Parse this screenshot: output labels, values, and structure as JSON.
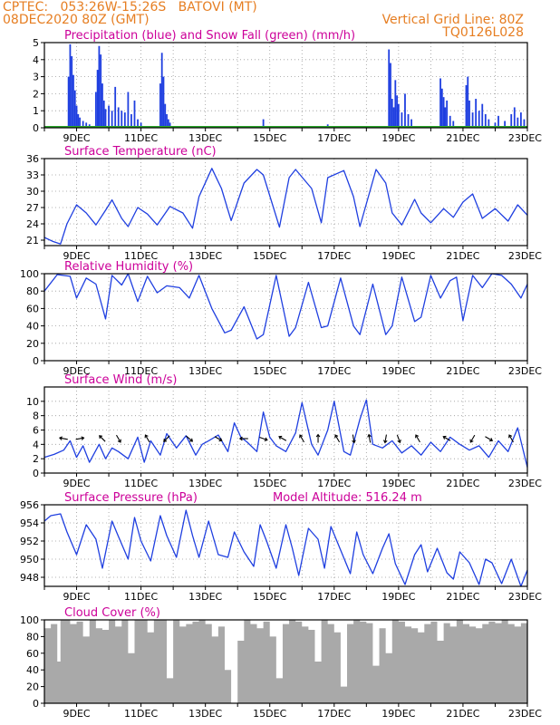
{
  "header": {
    "line1_left": "CPTEC:   053:26W-15:26S   BATOVI (MT)",
    "line2_left": "08DEC2020 80Z (GMT)",
    "line1_right": "Vertical Grid Line: 80Z",
    "line2_right": "TQ0126L028"
  },
  "colors": {
    "header_orange": "#e67e22",
    "title_magenta": "#cc0099",
    "series_blue": "#1f3fe0",
    "snow_green": "#2aa52a",
    "cloud_gray": "#a9a9a9",
    "grid_gray": "#9a9a9a",
    "wind_arrow": "#000000"
  },
  "x_axis": {
    "labels": [
      "9DEC",
      "11DEC",
      "13DEC",
      "15DEC",
      "17DEC",
      "19DEC",
      "21DEC",
      "23DEC"
    ]
  },
  "chart_data": [
    {
      "id": "precip",
      "type": "bar",
      "title": "Precipitation (blue) and Snow Fall (green) (mm/h)",
      "ylim": [
        0,
        5
      ],
      "yticks": [
        0,
        1,
        2,
        3,
        4,
        5
      ],
      "grid": true,
      "series": [
        {
          "name": "Precipitation",
          "color": "#1f3fe0",
          "x": [
            8.75,
            8.8,
            8.85,
            8.9,
            8.95,
            9.0,
            9.05,
            9.1,
            9.2,
            9.3,
            9.4,
            9.6,
            9.65,
            9.7,
            9.75,
            9.8,
            9.85,
            9.9,
            10.0,
            10.1,
            10.2,
            10.3,
            10.4,
            10.5,
            10.6,
            10.7,
            10.8,
            10.9,
            11.0,
            11.6,
            11.65,
            11.7,
            11.75,
            11.8,
            11.85,
            11.9,
            14.8,
            16.8,
            18.7,
            18.75,
            18.8,
            18.85,
            18.9,
            18.95,
            19.0,
            19.1,
            19.2,
            19.3,
            19.4,
            20.3,
            20.35,
            20.4,
            20.45,
            20.5,
            20.6,
            20.7,
            21.1,
            21.15,
            21.2,
            21.3,
            21.4,
            21.5,
            21.6,
            21.7,
            21.8,
            22.0,
            22.1,
            22.3,
            22.5,
            22.6,
            22.7,
            22.8,
            22.9
          ],
          "values": [
            3.0,
            4.9,
            4.2,
            3.1,
            2.2,
            1.3,
            0.8,
            0.6,
            0.4,
            0.3,
            0.2,
            2.1,
            3.4,
            4.8,
            4.3,
            2.6,
            1.6,
            1.1,
            1.3,
            1.0,
            2.4,
            1.2,
            1.0,
            0.9,
            2.1,
            0.8,
            1.6,
            0.5,
            0.3,
            2.6,
            4.4,
            3.0,
            1.4,
            0.8,
            0.5,
            0.3,
            0.5,
            0.2,
            4.6,
            3.8,
            1.7,
            1.2,
            2.8,
            1.9,
            1.4,
            0.9,
            2.0,
            0.8,
            0.5,
            2.9,
            2.3,
            1.8,
            1.2,
            1.6,
            0.7,
            0.4,
            2.5,
            3.0,
            1.6,
            0.9,
            1.7,
            1.0,
            1.4,
            0.8,
            0.5,
            0.3,
            0.7,
            0.4,
            0.8,
            1.2,
            0.6,
            0.9,
            0.5
          ]
        },
        {
          "name": "Snow Fall",
          "color": "#2aa52a",
          "x": [
            8.0,
            23.0
          ],
          "values": [
            0,
            0
          ]
        }
      ]
    },
    {
      "id": "temp",
      "type": "line",
      "title": "Surface Temperature (nC)",
      "ylim": [
        20,
        36
      ],
      "yticks": [
        21,
        24,
        27,
        30,
        33,
        36
      ],
      "grid": true,
      "series": [
        {
          "name": "Temperature",
          "color": "#1f3fe0",
          "x": [
            8.0,
            8.25,
            8.5,
            8.7,
            9.0,
            9.3,
            9.6,
            9.9,
            10.1,
            10.4,
            10.6,
            10.9,
            11.2,
            11.5,
            11.9,
            12.3,
            12.6,
            12.8,
            13.2,
            13.5,
            13.8,
            14.2,
            14.6,
            14.8,
            15.3,
            15.6,
            15.8,
            16.3,
            16.6,
            16.8,
            17.3,
            17.6,
            17.8,
            18.3,
            18.6,
            18.8,
            19.1,
            19.5,
            19.7,
            20.0,
            20.4,
            20.7,
            21.0,
            21.3,
            21.6,
            22.0,
            22.4,
            22.7,
            23.0
          ],
          "values": [
            21.5,
            20.8,
            20.3,
            24.0,
            27.5,
            26.0,
            23.8,
            26.5,
            28.4,
            25.0,
            23.5,
            27.0,
            25.8,
            23.8,
            27.2,
            26.0,
            23.2,
            29.0,
            34.2,
            30.5,
            24.6,
            31.5,
            34.0,
            33.0,
            23.4,
            32.5,
            34.0,
            30.5,
            24.2,
            32.5,
            33.8,
            29.0,
            23.5,
            34.0,
            31.5,
            26.0,
            23.8,
            28.5,
            26.0,
            24.2,
            26.8,
            25.2,
            28.0,
            29.5,
            25.0,
            26.8,
            24.5,
            27.5,
            25.6
          ]
        }
      ]
    },
    {
      "id": "rh",
      "type": "line",
      "title": "Relative Humidity (%)",
      "ylim": [
        0,
        100
      ],
      "yticks": [
        0,
        20,
        40,
        60,
        80,
        100
      ],
      "grid": true,
      "series": [
        {
          "name": "Relative Humidity",
          "color": "#1f3fe0",
          "x": [
            8.0,
            8.4,
            8.8,
            9.0,
            9.3,
            9.6,
            9.9,
            10.1,
            10.4,
            10.6,
            10.9,
            11.2,
            11.5,
            11.8,
            12.2,
            12.5,
            12.8,
            13.2,
            13.6,
            13.8,
            14.2,
            14.6,
            14.8,
            15.2,
            15.6,
            15.8,
            16.2,
            16.6,
            16.8,
            17.2,
            17.6,
            17.8,
            18.2,
            18.6,
            18.8,
            19.1,
            19.5,
            19.7,
            20.0,
            20.3,
            20.6,
            20.8,
            21.0,
            21.3,
            21.6,
            21.9,
            22.2,
            22.5,
            22.8,
            23.0
          ],
          "values": [
            80,
            99,
            97,
            72,
            95,
            88,
            48,
            98,
            87,
            100,
            68,
            97,
            78,
            86,
            84,
            72,
            98,
            60,
            32,
            35,
            62,
            25,
            30,
            98,
            28,
            38,
            90,
            38,
            40,
            95,
            40,
            30,
            88,
            30,
            40,
            96,
            45,
            50,
            98,
            72,
            92,
            96,
            46,
            98,
            84,
            100,
            98,
            88,
            72,
            88
          ]
        }
      ]
    },
    {
      "id": "wind",
      "type": "line",
      "title": "Surface Wind (m/s)",
      "ylim": [
        0,
        12
      ],
      "yticks": [
        0,
        2,
        4,
        6,
        8,
        10
      ],
      "grid": true,
      "series": [
        {
          "name": "Wind Speed",
          "color": "#1f3fe0",
          "x": [
            8.0,
            8.3,
            8.6,
            8.8,
            9.0,
            9.2,
            9.4,
            9.7,
            9.9,
            10.1,
            10.3,
            10.6,
            10.9,
            11.1,
            11.3,
            11.6,
            11.8,
            12.1,
            12.4,
            12.7,
            12.9,
            13.1,
            13.4,
            13.7,
            13.9,
            14.1,
            14.3,
            14.6,
            14.8,
            15.0,
            15.2,
            15.5,
            15.8,
            16.0,
            16.3,
            16.5,
            16.8,
            17.0,
            17.3,
            17.5,
            17.8,
            18.0,
            18.2,
            18.5,
            18.8,
            19.1,
            19.4,
            19.7,
            20.0,
            20.3,
            20.6,
            20.9,
            21.2,
            21.5,
            21.8,
            22.1,
            22.4,
            22.7,
            23.0
          ],
          "values": [
            2.2,
            2.6,
            3.2,
            4.5,
            2.2,
            3.8,
            1.5,
            4.0,
            2.0,
            3.5,
            3.0,
            2.0,
            5.0,
            1.5,
            4.5,
            2.5,
            5.5,
            3.5,
            5.2,
            2.5,
            4.0,
            4.5,
            5.3,
            3.0,
            7.0,
            5.0,
            4.3,
            3.0,
            8.5,
            5.0,
            3.8,
            3.0,
            5.6,
            9.8,
            4.0,
            2.5,
            6.0,
            10.0,
            3.0,
            2.5,
            7.5,
            10.2,
            4.0,
            3.5,
            4.5,
            2.8,
            3.8,
            2.5,
            4.3,
            3.0,
            5.0,
            4.0,
            3.2,
            3.8,
            2.2,
            4.5,
            3.0,
            6.3,
            0.8
          ]
        }
      ],
      "arrows": [
        {
          "x": 8.6,
          "angle": 170
        },
        {
          "x": 9.1,
          "angle": 10
        },
        {
          "x": 9.8,
          "angle": 135
        },
        {
          "x": 10.3,
          "angle": -60
        },
        {
          "x": 11.2,
          "angle": 120
        },
        {
          "x": 11.8,
          "angle": -135
        },
        {
          "x": 12.5,
          "angle": -40
        },
        {
          "x": 13.4,
          "angle": -30
        },
        {
          "x": 14.2,
          "angle": 180
        },
        {
          "x": 14.8,
          "angle": -20
        },
        {
          "x": 15.4,
          "angle": 150
        },
        {
          "x": 16.0,
          "angle": 120
        },
        {
          "x": 16.5,
          "angle": 90
        },
        {
          "x": 17.1,
          "angle": 120
        },
        {
          "x": 17.6,
          "angle": -80
        },
        {
          "x": 18.1,
          "angle": 100
        },
        {
          "x": 18.6,
          "angle": -100
        },
        {
          "x": 19.0,
          "angle": -70
        },
        {
          "x": 19.6,
          "angle": 120
        },
        {
          "x": 20.5,
          "angle": 150
        },
        {
          "x": 21.3,
          "angle": -120
        },
        {
          "x": 21.8,
          "angle": -30
        },
        {
          "x": 22.5,
          "angle": 120
        }
      ]
    },
    {
      "id": "pressure",
      "type": "line",
      "title": "Surface Pressure (hPa)",
      "annotation": "Model Altitude: 516.24 m",
      "ylim": [
        947,
        956
      ],
      "yticks": [
        948,
        950,
        952,
        954,
        956
      ],
      "grid": true,
      "series": [
        {
          "name": "Surface Pressure",
          "color": "#1f3fe0",
          "x": [
            8.0,
            8.2,
            8.5,
            8.7,
            9.0,
            9.3,
            9.6,
            9.8,
            10.1,
            10.3,
            10.6,
            10.8,
            11.0,
            11.3,
            11.6,
            11.8,
            12.1,
            12.4,
            12.6,
            12.8,
            13.1,
            13.4,
            13.7,
            13.9,
            14.2,
            14.5,
            14.7,
            14.9,
            15.2,
            15.5,
            15.7,
            15.9,
            16.2,
            16.5,
            16.7,
            16.9,
            17.2,
            17.5,
            17.7,
            17.9,
            18.2,
            18.5,
            18.7,
            18.9,
            19.2,
            19.5,
            19.7,
            19.9,
            20.2,
            20.5,
            20.7,
            20.9,
            21.2,
            21.5,
            21.7,
            21.9,
            22.2,
            22.5,
            22.8,
            23.0
          ],
          "values": [
            954.2,
            954.8,
            955.0,
            953.0,
            950.5,
            953.8,
            952.2,
            949.0,
            954.2,
            952.5,
            950.0,
            954.6,
            952.0,
            949.8,
            954.8,
            952.6,
            950.2,
            955.4,
            952.6,
            950.2,
            954.2,
            950.5,
            950.2,
            953.0,
            950.8,
            949.2,
            953.8,
            952.0,
            949.0,
            953.8,
            951.2,
            948.2,
            953.4,
            952.2,
            949.0,
            953.6,
            951.0,
            948.4,
            953.0,
            950.5,
            948.4,
            951.2,
            952.8,
            949.5,
            947.2,
            950.5,
            951.6,
            948.6,
            951.2,
            948.5,
            947.8,
            950.8,
            949.6,
            947.2,
            950.0,
            949.6,
            947.3,
            950.0,
            947.0,
            948.8
          ]
        }
      ]
    },
    {
      "id": "cloud",
      "type": "area",
      "title": "Cloud Cover (%)",
      "ylim": [
        0,
        100
      ],
      "yticks": [
        0,
        20,
        40,
        60,
        80,
        100
      ],
      "grid": false,
      "series": [
        {
          "name": "Cloud Cover",
          "color": "#a9a9a9",
          "x": [
            8.0,
            8.2,
            8.4,
            8.5,
            8.6,
            8.8,
            9.0,
            9.2,
            9.4,
            9.6,
            9.8,
            10.0,
            10.2,
            10.4,
            10.6,
            10.8,
            11.0,
            11.2,
            11.4,
            11.6,
            11.8,
            12.0,
            12.2,
            12.4,
            12.6,
            12.8,
            13.0,
            13.2,
            13.4,
            13.6,
            13.8,
            14.0,
            14.2,
            14.4,
            14.6,
            14.8,
            15.0,
            15.2,
            15.4,
            15.6,
            15.8,
            16.0,
            16.2,
            16.4,
            16.6,
            16.8,
            17.0,
            17.2,
            17.4,
            17.6,
            17.8,
            18.0,
            18.2,
            18.4,
            18.6,
            18.8,
            19.0,
            19.2,
            19.4,
            19.6,
            19.8,
            20.0,
            20.2,
            20.4,
            20.6,
            20.8,
            21.0,
            21.2,
            21.4,
            21.6,
            21.8,
            22.0,
            22.2,
            22.4,
            22.6,
            22.8,
            23.0
          ],
          "values": [
            90,
            95,
            50,
            100,
            100,
            95,
            98,
            80,
            100,
            90,
            88,
            100,
            92,
            100,
            60,
            100,
            100,
            85,
            100,
            100,
            30,
            100,
            92,
            95,
            98,
            100,
            95,
            80,
            92,
            40,
            0,
            75,
            100,
            95,
            90,
            98,
            80,
            30,
            95,
            100,
            98,
            92,
            88,
            50,
            100,
            95,
            85,
            20,
            95,
            100,
            98,
            96,
            45,
            90,
            60,
            100,
            98,
            92,
            90,
            85,
            95,
            98,
            75,
            96,
            92,
            100,
            95,
            92,
            90,
            95,
            98,
            96,
            100,
            95,
            92,
            96,
            95
          ]
        }
      ]
    }
  ]
}
